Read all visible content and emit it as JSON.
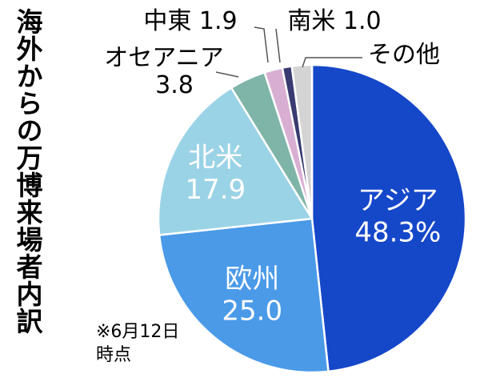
{
  "chart_data": {
    "type": "pie",
    "title": "海外からの万博来場者内訳",
    "note": "※6月12日時点",
    "start_angle_deg": 0,
    "direction": "clockwise",
    "slices": [
      {
        "label": "アジア",
        "value": 48.3,
        "value_text": "48.3%",
        "color": "#1547c9",
        "label_inside": true,
        "text_color": "#ffffff"
      },
      {
        "label": "欧州",
        "value": 25.0,
        "value_text": "25.0",
        "color": "#4a9ae8",
        "label_inside": true,
        "text_color": "#ffffff"
      },
      {
        "label": "北米",
        "value": 17.9,
        "value_text": "17.9",
        "color": "#9bd3e6",
        "label_inside": true,
        "text_color": "#ffffff"
      },
      {
        "label": "オセアニア",
        "value": 3.8,
        "value_text": "3.8",
        "color": "#7fb5a8",
        "label_inside": false,
        "text_color": "#000000"
      },
      {
        "label": "中東",
        "value": 1.9,
        "value_text": "1.9",
        "color": "#d8afd3",
        "label_inside": false,
        "text_color": "#000000"
      },
      {
        "label": "南米",
        "value": 1.0,
        "value_text": "1.0",
        "color": "#3a3a72",
        "label_inside": false,
        "text_color": "#000000"
      },
      {
        "label": "その他",
        "value": 2.1,
        "value_text": "",
        "color": "#d4d4d4",
        "label_inside": false,
        "text_color": "#000000"
      }
    ]
  }
}
